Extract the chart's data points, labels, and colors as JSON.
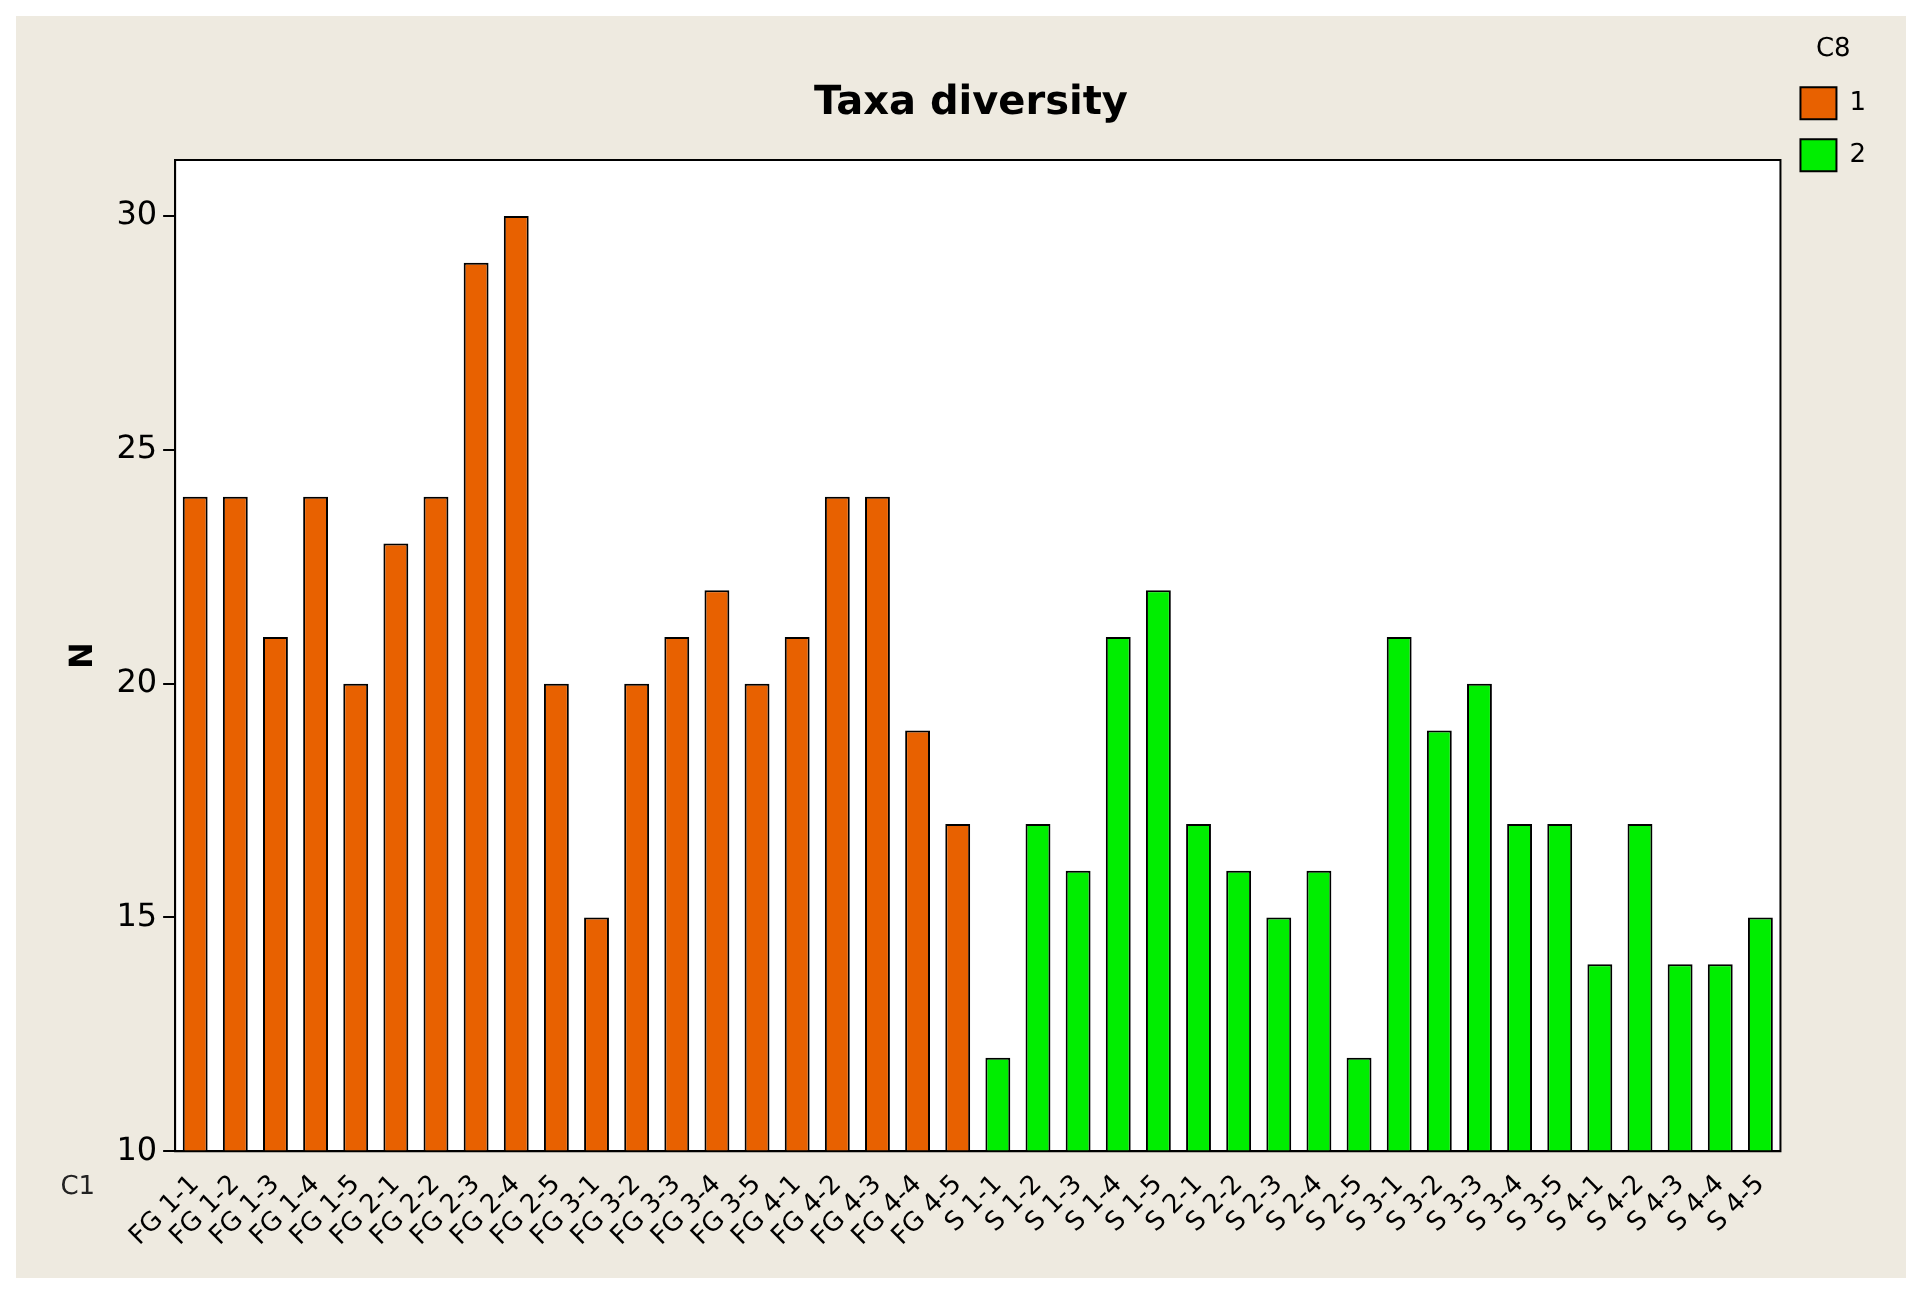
{
  "chart_data": {
    "type": "bar",
    "title": "Taxa diversity",
    "xlabel": "C1",
    "ylabel": "N",
    "legend_title": "C8",
    "legend": "top right",
    "grid": false,
    "categories": [
      "FG 1-1",
      "FG 1-2",
      "FG 1-3",
      "FG 1-4",
      "FG 1-5",
      "FG 2-1",
      "FG 2-2",
      "FG 2-3",
      "FG 2-4",
      "FG 2-5",
      "FG 3-1",
      "FG 3-2",
      "FG 3-3",
      "FG 3-4",
      "FG 3-5",
      "FG 4-1",
      "FG 4-2",
      "FG 4-3",
      "FG 4-4",
      "FG 4-5",
      "S 1-1",
      "S 1-2",
      "S 1-3",
      "S 1-4",
      "S 1-5",
      "S 2-1",
      "S 2-2",
      "S 2-3",
      "S 2-4",
      "S 2-5",
      "S 3-1",
      "S 3-2",
      "S 3-3",
      "S 3-4",
      "S 3-5",
      "S 4-1",
      "S 4-2",
      "S 4-3",
      "S 4-4",
      "S 4-5"
    ],
    "series": [
      {
        "name": "1",
        "color": "#e86100",
        "values": [
          24,
          24,
          21,
          24,
          20,
          23,
          24,
          29,
          30,
          20,
          15,
          20,
          21,
          22,
          20,
          21,
          24,
          24,
          19,
          17,
          null,
          null,
          null,
          null,
          null,
          null,
          null,
          null,
          null,
          null,
          null,
          null,
          null,
          null,
          null,
          null,
          null,
          null,
          null,
          null
        ]
      },
      {
        "name": "2",
        "color": "#00ee00",
        "values": [
          null,
          null,
          null,
          null,
          null,
          null,
          null,
          null,
          null,
          null,
          null,
          null,
          null,
          null,
          null,
          null,
          null,
          null,
          null,
          null,
          12,
          17,
          16,
          21,
          22,
          17,
          16,
          15,
          16,
          12,
          21,
          19,
          20,
          17,
          17,
          14,
          17,
          14,
          14,
          15
        ]
      }
    ],
    "ylim": [
      10,
      31.2
    ],
    "yticks": [
      10,
      15,
      20,
      25,
      30
    ]
  }
}
